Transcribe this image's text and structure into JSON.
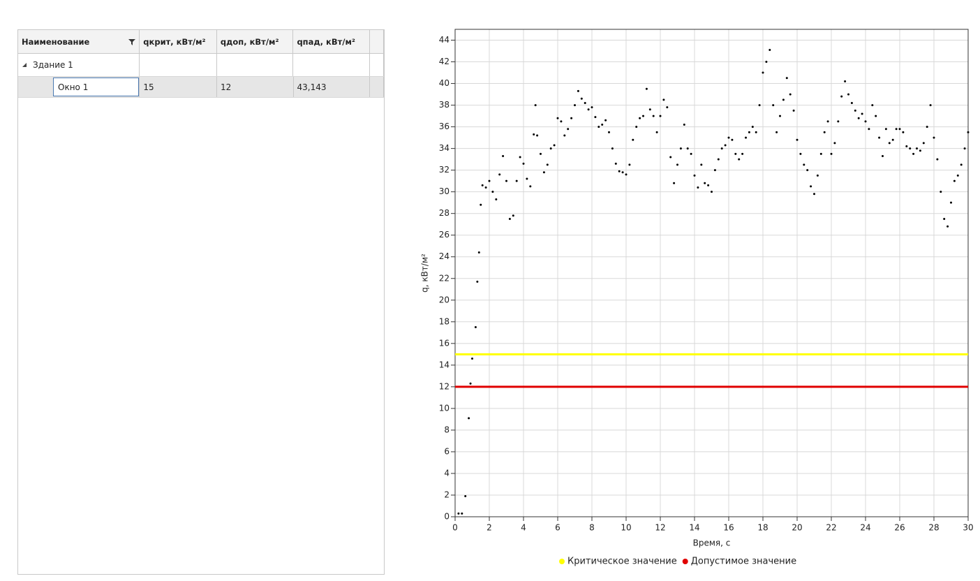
{
  "table": {
    "columns": [
      "Наименование",
      "qкрит, кВт/м²",
      "qдоп, кВт/м²",
      "qпад, кВт/м²"
    ],
    "group": "Здание 1",
    "rows": [
      [
        "Окно 1",
        "15",
        "12",
        "43,143"
      ]
    ]
  },
  "chart_data": {
    "type": "scatter",
    "x_label": "Время, с",
    "y_label": "q, кВт/м²",
    "xlim": [
      0,
      30
    ],
    "xticks": [
      0,
      2,
      4,
      6,
      8,
      10,
      12,
      14,
      16,
      18,
      20,
      22,
      24,
      26,
      28,
      30
    ],
    "ylim": [
      0,
      45
    ],
    "yticks": [
      0,
      2,
      4,
      6,
      8,
      10,
      12,
      14,
      16,
      18,
      20,
      22,
      24,
      26,
      28,
      30,
      32,
      34,
      36,
      38,
      40,
      42,
      44
    ],
    "grid": true,
    "legend": "bottom",
    "reference_lines": [
      {
        "name": "Критическое значение",
        "color": "#ffff00",
        "value": 15
      },
      {
        "name": "Допустимое значение",
        "color": "#e00000",
        "value": 12
      }
    ],
    "series": [
      {
        "color": "#000000",
        "x": [
          0.2,
          0.4,
          0.6,
          0.8,
          0.9,
          1.0,
          1.2,
          1.3,
          1.4,
          1.5,
          1.6,
          1.8,
          2.0,
          2.2,
          2.4,
          2.6,
          2.8,
          3.0,
          3.2,
          3.4,
          3.6,
          3.8,
          4.0,
          4.2,
          4.4,
          4.6,
          4.7,
          4.8,
          5.0,
          5.2,
          5.4,
          5.6,
          5.8,
          6.0,
          6.2,
          6.4,
          6.6,
          6.8,
          7.0,
          7.2,
          7.4,
          7.6,
          7.8,
          8.0,
          8.2,
          8.4,
          8.6,
          8.8,
          9.0,
          9.2,
          9.4,
          9.6,
          9.8,
          10.0,
          10.2,
          10.4,
          10.6,
          10.8,
          11.0,
          11.2,
          11.4,
          11.6,
          11.8,
          12.0,
          12.2,
          12.4,
          12.6,
          12.8,
          13.0,
          13.2,
          13.4,
          13.6,
          13.8,
          14.0,
          14.2,
          14.4,
          14.6,
          14.8,
          15.0,
          15.2,
          15.4,
          15.6,
          15.8,
          16.0,
          16.2,
          16.4,
          16.6,
          16.8,
          17.0,
          17.2,
          17.4,
          17.6,
          17.8,
          18.0,
          18.2,
          18.4,
          18.6,
          18.8,
          19.0,
          19.2,
          19.4,
          19.6,
          19.8,
          20.0,
          20.2,
          20.4,
          20.6,
          20.8,
          21.0,
          21.2,
          21.4,
          21.6,
          21.8,
          22.0,
          22.2,
          22.4,
          22.6,
          22.8,
          23.0,
          23.2,
          23.4,
          23.6,
          23.8,
          24.0,
          24.2,
          24.4,
          24.6,
          24.8,
          25.0,
          25.2,
          25.4,
          25.6,
          25.8,
          26.0,
          26.2,
          26.4,
          26.6,
          26.8,
          27.0,
          27.2,
          27.4,
          27.6,
          27.8,
          28.0,
          28.2,
          28.4,
          28.6,
          28.8,
          29.0,
          29.2,
          29.4,
          29.6,
          29.8,
          30.0
        ],
        "values": [
          0.3,
          0.3,
          1.9,
          9.1,
          12.3,
          14.6,
          17.5,
          21.7,
          24.4,
          28.8,
          30.6,
          30.4,
          31.0,
          30.0,
          29.3,
          31.6,
          33.3,
          31.0,
          27.5,
          27.8,
          31.0,
          33.2,
          32.6,
          31.2,
          30.5,
          35.3,
          38.0,
          35.2,
          33.5,
          31.8,
          32.5,
          34.0,
          34.3,
          36.8,
          36.5,
          35.2,
          35.8,
          36.8,
          38.0,
          39.3,
          38.6,
          38.2,
          37.6,
          37.8,
          36.9,
          36.0,
          36.2,
          36.6,
          35.5,
          34.0,
          32.6,
          31.9,
          31.8,
          31.6,
          32.5,
          34.8,
          36.0,
          36.8,
          37.0,
          39.5,
          37.6,
          37.0,
          35.5,
          37.0,
          38.5,
          37.8,
          33.2,
          30.8,
          32.5,
          34.0,
          36.2,
          34.0,
          33.5,
          31.5,
          30.4,
          32.5,
          30.8,
          30.6,
          30.0,
          32.0,
          33.0,
          34.0,
          34.3,
          35.0,
          34.8,
          33.5,
          33.0,
          33.5,
          35.0,
          35.5,
          36.0,
          35.5,
          38.0,
          41.0,
          42.0,
          43.1,
          38.0,
          35.5,
          37.0,
          38.5,
          40.5,
          39.0,
          37.5,
          34.8,
          33.5,
          32.5,
          32.0,
          30.5,
          29.8,
          31.5,
          33.5,
          35.5,
          36.5,
          33.5,
          34.5,
          36.5,
          38.8,
          40.2,
          39.0,
          38.2,
          37.5,
          36.8,
          37.2,
          36.5,
          35.8,
          38.0,
          37.0,
          35.0,
          33.3,
          35.8,
          34.5,
          34.8,
          35.8,
          35.8,
          35.5,
          34.2,
          34.0,
          33.5,
          34.0,
          33.8,
          34.5,
          36.0,
          38.0,
          35.0,
          33.0,
          30.0,
          27.5,
          26.8,
          29.0,
          31.0,
          31.5,
          32.5,
          34.0,
          35.5
        ]
      }
    ]
  }
}
